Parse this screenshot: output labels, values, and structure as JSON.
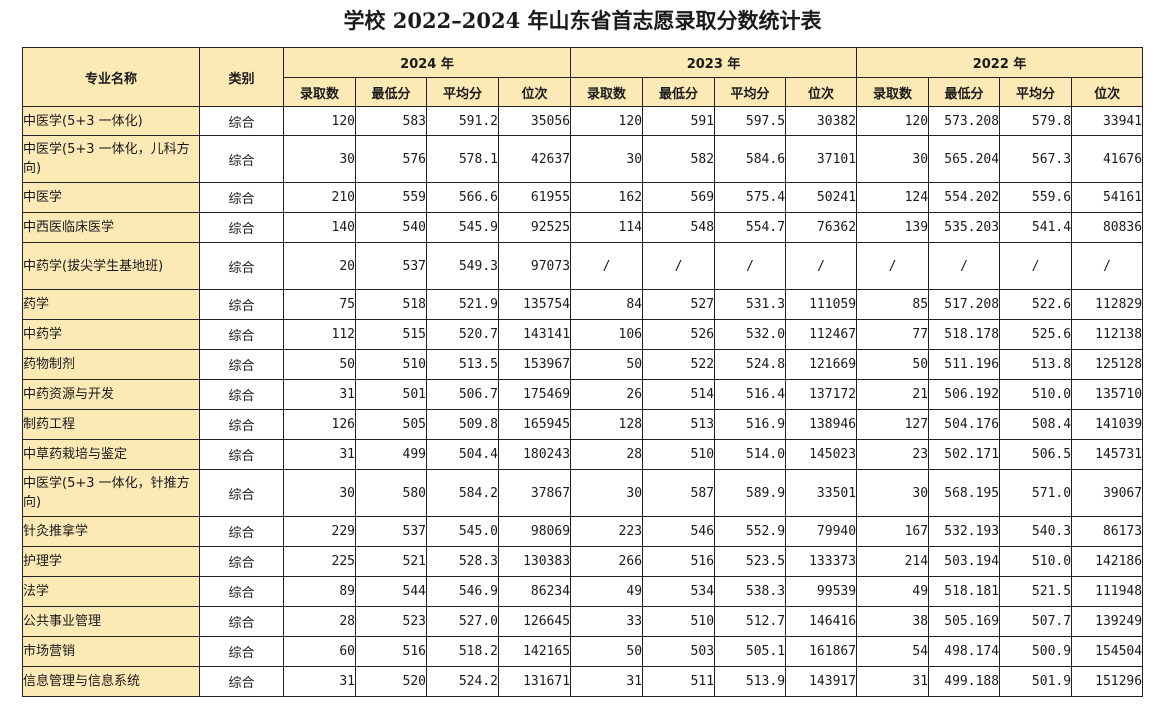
{
  "title": "学校 2022–2024 年山东省首志愿录取分数统计表",
  "headers": {
    "major": "专业名称",
    "category": "类别",
    "years": [
      "2024 年",
      "2023 年",
      "2022 年"
    ],
    "cols": [
      "录取数",
      "最低分",
      "平均分",
      "位次"
    ]
  },
  "rows": [
    {
      "name": "中医学(5+3 一体化)",
      "cat": "综合",
      "v": [
        "120",
        "583",
        "591.2",
        "35056",
        "120",
        "591",
        "597.5",
        "30382",
        "120",
        "573.208",
        "579.8",
        "33941"
      ]
    },
    {
      "name": "中医学(5+3 一体化，儿科方向)",
      "cat": "综合",
      "v": [
        "30",
        "576",
        "578.1",
        "42637",
        "30",
        "582",
        "584.6",
        "37101",
        "30",
        "565.204",
        "567.3",
        "41676"
      ]
    },
    {
      "name": "中医学",
      "cat": "综合",
      "v": [
        "210",
        "559",
        "566.6",
        "61955",
        "162",
        "569",
        "575.4",
        "50241",
        "124",
        "554.202",
        "559.6",
        "54161"
      ]
    },
    {
      "name": "中西医临床医学",
      "cat": "综合",
      "v": [
        "140",
        "540",
        "545.9",
        "92525",
        "114",
        "548",
        "554.7",
        "76362",
        "139",
        "535.203",
        "541.4",
        "80836"
      ]
    },
    {
      "name": "中药学(拔尖学生基地班)",
      "cat": "综合",
      "v": [
        "20",
        "537",
        "549.3",
        "97073",
        "/",
        "/",
        "/",
        "/",
        "/",
        "/",
        "/",
        "/"
      ]
    },
    {
      "name": "药学",
      "cat": "综合",
      "v": [
        "75",
        "518",
        "521.9",
        "135754",
        "84",
        "527",
        "531.3",
        "111059",
        "85",
        "517.208",
        "522.6",
        "112829"
      ]
    },
    {
      "name": "中药学",
      "cat": "综合",
      "v": [
        "112",
        "515",
        "520.7",
        "143141",
        "106",
        "526",
        "532.0",
        "112467",
        "77",
        "518.178",
        "525.6",
        "112138"
      ]
    },
    {
      "name": "药物制剂",
      "cat": "综合",
      "v": [
        "50",
        "510",
        "513.5",
        "153967",
        "50",
        "522",
        "524.8",
        "121669",
        "50",
        "511.196",
        "513.8",
        "125128"
      ]
    },
    {
      "name": "中药资源与开发",
      "cat": "综合",
      "v": [
        "31",
        "501",
        "506.7",
        "175469",
        "26",
        "514",
        "516.4",
        "137172",
        "21",
        "506.192",
        "510.0",
        "135710"
      ]
    },
    {
      "name": "制药工程",
      "cat": "综合",
      "v": [
        "126",
        "505",
        "509.8",
        "165945",
        "128",
        "513",
        "516.9",
        "138946",
        "127",
        "504.176",
        "508.4",
        "141039"
      ]
    },
    {
      "name": "中草药栽培与鉴定",
      "cat": "综合",
      "v": [
        "31",
        "499",
        "504.4",
        "180243",
        "28",
        "510",
        "514.0",
        "145023",
        "23",
        "502.171",
        "506.5",
        "145731"
      ]
    },
    {
      "name": "中医学(5+3 一体化，针推方向)",
      "cat": "综合",
      "v": [
        "30",
        "580",
        "584.2",
        "37867",
        "30",
        "587",
        "589.9",
        "33501",
        "30",
        "568.195",
        "571.0",
        "39067"
      ]
    },
    {
      "name": "针灸推拿学",
      "cat": "综合",
      "v": [
        "229",
        "537",
        "545.0",
        "98069",
        "223",
        "546",
        "552.9",
        "79940",
        "167",
        "532.193",
        "540.3",
        "86173"
      ]
    },
    {
      "name": "护理学",
      "cat": "综合",
      "v": [
        "225",
        "521",
        "528.3",
        "130383",
        "266",
        "516",
        "523.5",
        "133373",
        "214",
        "503.194",
        "510.0",
        "142186"
      ]
    },
    {
      "name": "法学",
      "cat": "综合",
      "v": [
        "89",
        "544",
        "546.9",
        "86234",
        "49",
        "534",
        "538.3",
        "99539",
        "49",
        "518.181",
        "521.5",
        "111948"
      ]
    },
    {
      "name": "公共事业管理",
      "cat": "综合",
      "v": [
        "28",
        "523",
        "527.0",
        "126645",
        "33",
        "510",
        "512.7",
        "146416",
        "38",
        "505.169",
        "507.7",
        "139249"
      ]
    },
    {
      "name": "市场营销",
      "cat": "综合",
      "v": [
        "60",
        "516",
        "518.2",
        "142165",
        "50",
        "503",
        "505.1",
        "161867",
        "54",
        "498.174",
        "500.9",
        "154504"
      ]
    },
    {
      "name": "信息管理与信息系统",
      "cat": "综合",
      "v": [
        "31",
        "520",
        "524.2",
        "131671",
        "31",
        "511",
        "513.9",
        "143917",
        "31",
        "499.188",
        "501.9",
        "151296"
      ]
    }
  ]
}
